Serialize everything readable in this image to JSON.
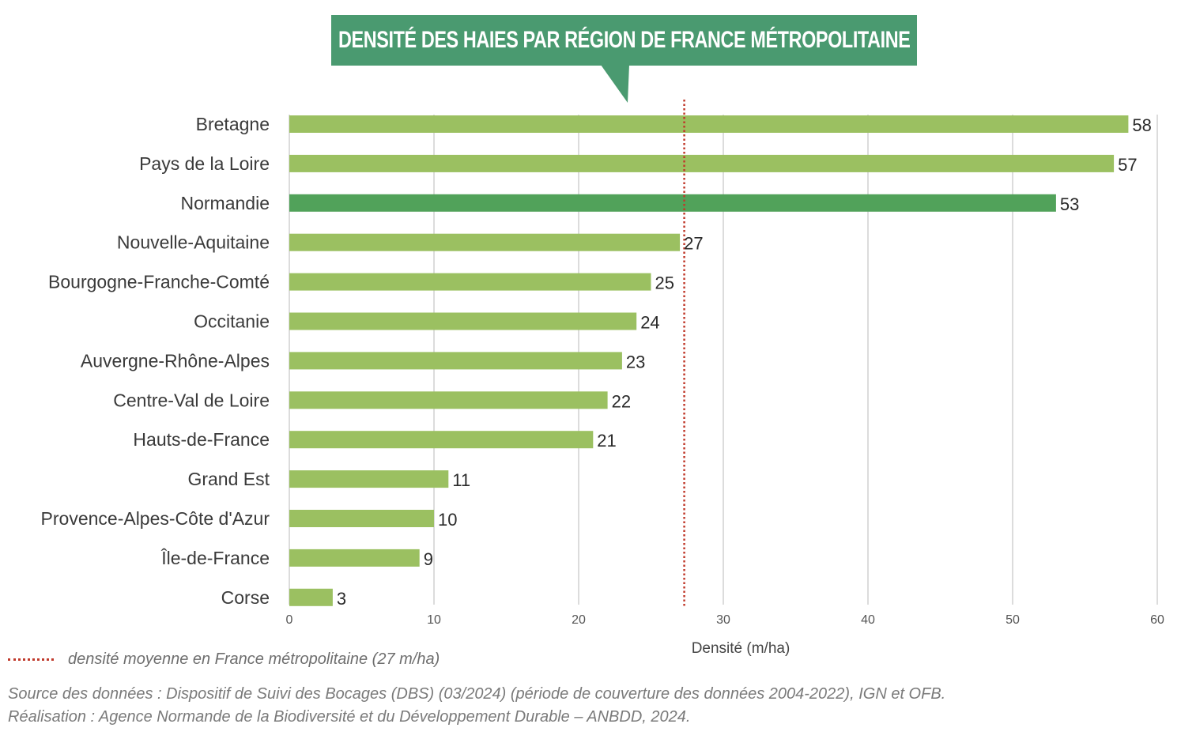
{
  "chart_data": {
    "type": "bar",
    "orientation": "horizontal",
    "title": "DENSITÉ DES HAIES PAR RÉGION DE FRANCE MÉTROPOLITAINE",
    "categories": [
      "Bretagne",
      "Pays de la Loire",
      "Normandie",
      "Nouvelle-Aquitaine",
      "Bourgogne-Franche-Comté",
      "Occitanie",
      "Auvergne-Rhône-Alpes",
      "Centre-Val de Loire",
      "Hauts-de-France",
      "Grand Est",
      "Provence-Alpes-Côte d'Azur",
      "Île-de-France",
      "Corse"
    ],
    "values": [
      58,
      57,
      53,
      27,
      25,
      24,
      23,
      22,
      21,
      11,
      10,
      9,
      3
    ],
    "highlight": "Normandie",
    "xlabel": "Densité (m/ha)",
    "ylabel": "",
    "xlim": [
      0,
      60
    ],
    "xticks": [
      0,
      10,
      20,
      30,
      40,
      50,
      60
    ],
    "grid": true,
    "reference_line": {
      "value": 27.3,
      "label": "densité moyenne en France métropolitaine (27 m/ha)"
    }
  },
  "colors": {
    "bar": "#9bc061",
    "highlight_bar": "#51a25a",
    "title_bg": "#4a9a70",
    "reference_line": "#c0392b",
    "grid": "#dcdcdc"
  },
  "footer": {
    "source_line": "Source des données : Dispositif de Suivi des Bocages (DBS) (03/2024) (période de couverture des données 2004-2022), IGN et OFB.",
    "credit_line": "Réalisation : Agence Normande de la Biodiversité et du Développement Durable – ANBDD, 2024."
  }
}
